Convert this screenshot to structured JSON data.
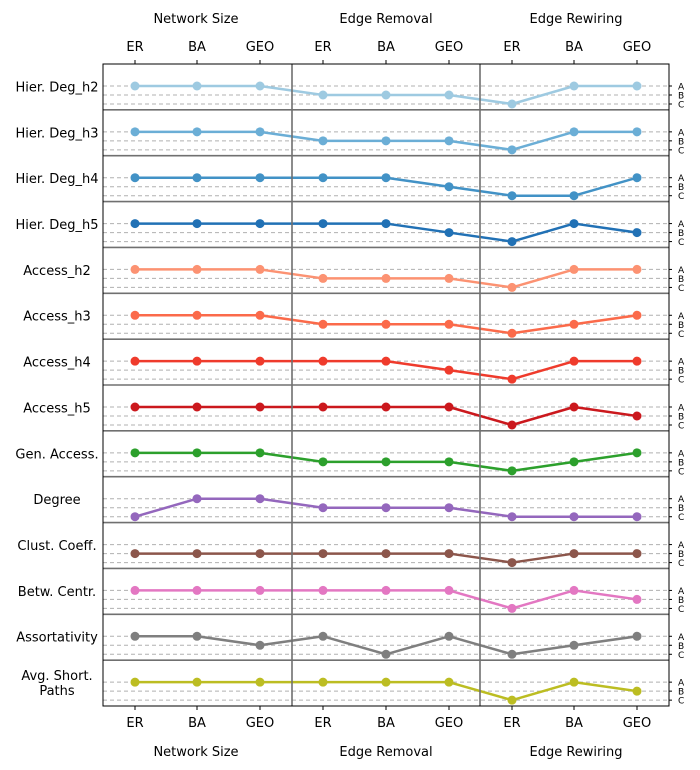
{
  "chart_data": {
    "type": "line",
    "groups": [
      "Network Size",
      "Edge Removal",
      "Edge Rewiring"
    ],
    "categories": [
      "ER",
      "BA",
      "GEO",
      "ER",
      "BA",
      "GEO",
      "ER",
      "BA",
      "GEO"
    ],
    "levels": [
      "A",
      "B",
      "C"
    ],
    "series": [
      {
        "name": "Hier. Deg_h2",
        "color": "#9ecae1",
        "values": [
          "A",
          "A",
          "A",
          "B",
          "B",
          "B",
          "C",
          "A",
          "A"
        ]
      },
      {
        "name": "Hier. Deg_h3",
        "color": "#6baed6",
        "values": [
          "A",
          "A",
          "A",
          "B",
          "B",
          "B",
          "C",
          "A",
          "A"
        ]
      },
      {
        "name": "Hier. Deg_h4",
        "color": "#4292c6",
        "values": [
          "A",
          "A",
          "A",
          "A",
          "A",
          "B",
          "C",
          "C",
          "A"
        ]
      },
      {
        "name": "Hier. Deg_h5",
        "color": "#2171b5",
        "values": [
          "A",
          "A",
          "A",
          "A",
          "A",
          "B",
          "C",
          "A",
          "B"
        ]
      },
      {
        "name": "Access_h2",
        "color": "#fc9272",
        "values": [
          "A",
          "A",
          "A",
          "B",
          "B",
          "B",
          "C",
          "A",
          "A"
        ]
      },
      {
        "name": "Access_h3",
        "color": "#fb6a4a",
        "values": [
          "A",
          "A",
          "A",
          "B",
          "B",
          "B",
          "C",
          "B",
          "A"
        ]
      },
      {
        "name": "Access_h4",
        "color": "#ef3b2c",
        "values": [
          "A",
          "A",
          "A",
          "A",
          "A",
          "B",
          "C",
          "A",
          "A"
        ]
      },
      {
        "name": "Access_h5",
        "color": "#cb181d",
        "values": [
          "A",
          "A",
          "A",
          "A",
          "A",
          "A",
          "C",
          "A",
          "B"
        ]
      },
      {
        "name": "Gen. Access.",
        "color": "#2ca02c",
        "values": [
          "A",
          "A",
          "A",
          "B",
          "B",
          "B",
          "C",
          "B",
          "A"
        ]
      },
      {
        "name": "Degree",
        "color": "#9467bd",
        "values": [
          "C",
          "A",
          "A",
          "B",
          "B",
          "B",
          "C",
          "C",
          "C"
        ]
      },
      {
        "name": "Clust. Coeff.",
        "color": "#8c564b",
        "values": [
          "B",
          "B",
          "B",
          "B",
          "B",
          "B",
          "C",
          "B",
          "B"
        ]
      },
      {
        "name": "Betw. Centr.",
        "color": "#e377c2",
        "values": [
          "A",
          "A",
          "A",
          "A",
          "A",
          "A",
          "C",
          "A",
          "B"
        ]
      },
      {
        "name": "Assortativity",
        "color": "#7f7f7f",
        "values": [
          "A",
          "A",
          "B",
          "A",
          "C",
          "A",
          "C",
          "B",
          "A"
        ]
      },
      {
        "name": "Avg. Short.\nPaths",
        "color": "#bcbd22",
        "values": [
          "A",
          "A",
          "A",
          "A",
          "A",
          "A",
          "C",
          "A",
          "B"
        ]
      }
    ]
  }
}
